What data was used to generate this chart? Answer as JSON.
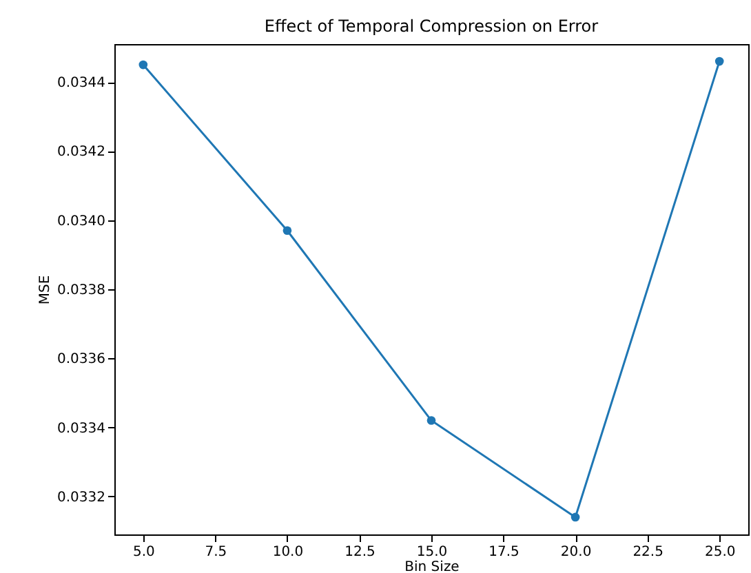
{
  "chart_data": {
    "type": "line",
    "title": "Effect of Temporal Compression on Error",
    "xlabel": "Bin Size",
    "ylabel": "MSE",
    "x": [
      5,
      10,
      15,
      20,
      25
    ],
    "series": [
      {
        "color": "#1f77b4",
        "values": [
          0.03445,
          0.03397,
          0.03342,
          0.03314,
          0.03446
        ]
      }
    ],
    "marker": "circle",
    "line_style": "solid",
    "grid": false,
    "legend": false,
    "xlim": [
      4,
      26
    ],
    "ylim": [
      0.03309,
      0.03451
    ],
    "xticks": [
      {
        "value": 5,
        "label": "5.0"
      },
      {
        "value": 7.5,
        "label": "7.5"
      },
      {
        "value": 10,
        "label": "10.0"
      },
      {
        "value": 12.5,
        "label": "12.5"
      },
      {
        "value": 15,
        "label": "15.0"
      },
      {
        "value": 17.5,
        "label": "17.5"
      },
      {
        "value": 20,
        "label": "20.0"
      },
      {
        "value": 22.5,
        "label": "22.5"
      },
      {
        "value": 25,
        "label": "25.0"
      }
    ],
    "yticks": [
      {
        "value": 0.0332,
        "label": "0.0332"
      },
      {
        "value": 0.0334,
        "label": "0.0334"
      },
      {
        "value": 0.0336,
        "label": "0.0336"
      },
      {
        "value": 0.0338,
        "label": "0.0338"
      },
      {
        "value": 0.034,
        "label": "0.0340"
      },
      {
        "value": 0.0342,
        "label": "0.0342"
      },
      {
        "value": 0.0344,
        "label": "0.0344"
      }
    ]
  }
}
